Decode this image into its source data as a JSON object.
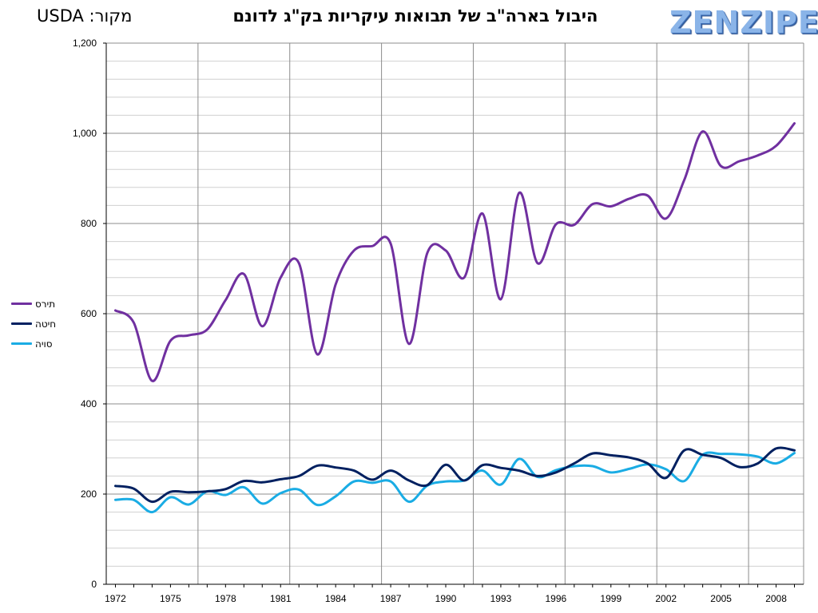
{
  "header": {
    "title": "היבול בארה\"ב של תבואות עיקריות בק\"ג לדונם",
    "source": "מקור: USDA",
    "logo": "ZENZIPER"
  },
  "colors": {
    "corn": "#7030a0",
    "wheat": "#002060",
    "soy": "#1aace4",
    "major_grid": "#8c8c8c",
    "minor_grid": "#d0d0d0"
  },
  "chart_data": {
    "type": "line",
    "title": "היבול בארה\"ב של תבואות עיקריות בק\"ג לדונם",
    "xlabel": "",
    "ylabel": "",
    "ylim": [
      0,
      1200
    ],
    "yticks": [
      "0",
      "200",
      "400",
      "600",
      "800",
      "1,000",
      "1,200"
    ],
    "ytick_values": [
      0,
      200,
      400,
      600,
      800,
      1000,
      1200
    ],
    "xticks": [
      "1972",
      "1975",
      "1978",
      "1981",
      "1984",
      "1987",
      "1990",
      "1993",
      "1996",
      "1999",
      "2002",
      "2005",
      "2008"
    ],
    "xtick_values": [
      1972,
      1975,
      1978,
      1981,
      1984,
      1987,
      1990,
      1993,
      1996,
      1999,
      2002,
      2005,
      2008
    ],
    "xlim": [
      1971.5,
      2009.5
    ],
    "vertical_gridlines": [
      1976.5,
      1981.5,
      1986.5,
      1991.5,
      1996.5,
      2001.5,
      2006.5
    ],
    "grid": true,
    "legend_position": "left",
    "x": [
      1972,
      1973,
      1974,
      1975,
      1976,
      1977,
      1978,
      1979,
      1980,
      1981,
      1982,
      1983,
      1984,
      1985,
      1986,
      1987,
      1988,
      1989,
      1990,
      1991,
      1992,
      1993,
      1994,
      1995,
      1996,
      1997,
      1998,
      1999,
      2000,
      2001,
      2002,
      2003,
      2004,
      2005,
      2006,
      2007,
      2008,
      2009
    ],
    "series": [
      {
        "name": "תירס",
        "color_key": "corn",
        "values": [
          607,
          580,
          451,
          540,
          552,
          565,
          630,
          688,
          572,
          680,
          712,
          510,
          665,
          740,
          750,
          755,
          533,
          735,
          740,
          680,
          822,
          632,
          868,
          712,
          798,
          797,
          843,
          838,
          855,
          862,
          811,
          897,
          1004,
          927,
          938,
          951,
          972,
          1022
        ]
      },
      {
        "name": "חיטה",
        "color_key": "wheat",
        "values": [
          218,
          212,
          183,
          205,
          204,
          206,
          211,
          229,
          226,
          233,
          240,
          263,
          259,
          252,
          232,
          252,
          230,
          220,
          265,
          230,
          264,
          258,
          252,
          240,
          248,
          268,
          290,
          286,
          281,
          268,
          236,
          297,
          287,
          280,
          260,
          268,
          301,
          297
        ]
      },
      {
        "name": "סויה",
        "color_key": "soy",
        "values": [
          187,
          187,
          160,
          193,
          177,
          206,
          198,
          215,
          179,
          202,
          210,
          176,
          195,
          228,
          225,
          228,
          183,
          219,
          228,
          230,
          252,
          221,
          278,
          238,
          253,
          262,
          262,
          248,
          256,
          266,
          255,
          229,
          287,
          289,
          288,
          283,
          268,
          291
        ]
      }
    ]
  }
}
